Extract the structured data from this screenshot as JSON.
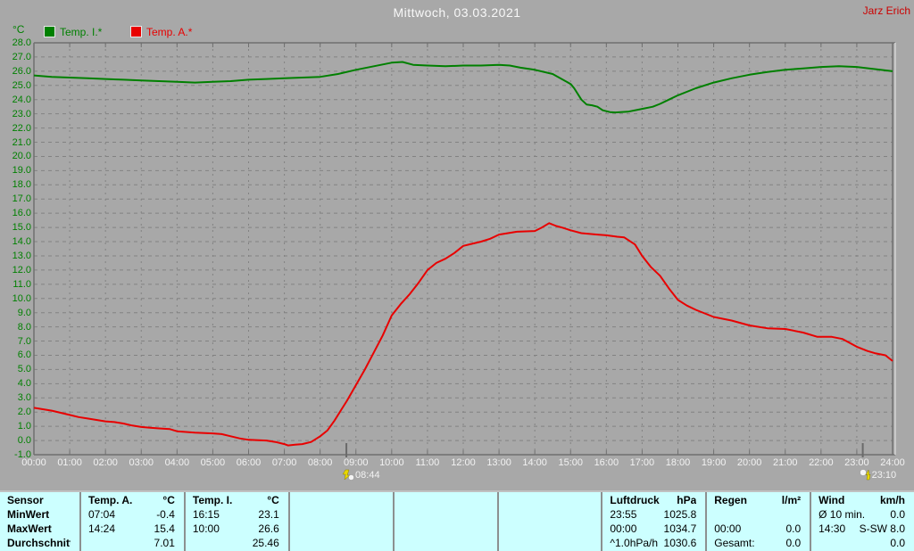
{
  "window": {
    "title": "Mittwoch, 03.03.2021",
    "author": "Jarz Erich"
  },
  "markers": [
    {
      "label": "08:44",
      "hours": 8.7333,
      "icon": "moon-set-icon"
    },
    {
      "label": "23:10",
      "hours": 23.1667,
      "icon": "moon-rise-icon"
    }
  ],
  "chart_data": {
    "type": "line",
    "title": "Mittwoch, 03.03.2021",
    "xlabel": "",
    "ylabel": "°C",
    "ylim": [
      -1.0,
      28.0
    ],
    "y_step": 1.0,
    "xlim_hours": [
      0,
      24
    ],
    "grid": "dashed",
    "legend_position": "top-left",
    "y_tick_labels": [
      "28.0",
      "27.0",
      "26.0",
      "25.0",
      "24.0",
      "23.0",
      "22.0",
      "21.0",
      "20.0",
      "19.0",
      "18.0",
      "17.0",
      "16.0",
      "15.0",
      "14.0",
      "13.0",
      "12.0",
      "11.0",
      "10.0",
      "9.0",
      "8.0",
      "7.0",
      "6.0",
      "5.0",
      "4.0",
      "3.0",
      "2.0",
      "1.0",
      "0.0",
      "-1.0"
    ],
    "x_tick_labels": [
      "00:00",
      "01:00",
      "02:00",
      "03:00",
      "04:00",
      "05:00",
      "06:00",
      "07:00",
      "08:00",
      "09:00",
      "10:00",
      "11:00",
      "12:00",
      "13:00",
      "14:00",
      "15:00",
      "16:00",
      "17:00",
      "18:00",
      "19:00",
      "20:00",
      "21:00",
      "22:00",
      "23:00",
      "24:00"
    ],
    "series": [
      {
        "name": "Temp. I.*",
        "color": "#008000",
        "points": [
          [
            0,
            25.7
          ],
          [
            0.5,
            25.6
          ],
          [
            1,
            25.55
          ],
          [
            1.5,
            25.5
          ],
          [
            2,
            25.45
          ],
          [
            2.5,
            25.4
          ],
          [
            3,
            25.35
          ],
          [
            3.5,
            25.3
          ],
          [
            4,
            25.25
          ],
          [
            4.5,
            25.2
          ],
          [
            5,
            25.25
          ],
          [
            5.5,
            25.3
          ],
          [
            6,
            25.4
          ],
          [
            6.5,
            25.45
          ],
          [
            7,
            25.5
          ],
          [
            7.5,
            25.55
          ],
          [
            8,
            25.6
          ],
          [
            8.5,
            25.8
          ],
          [
            9,
            26.1
          ],
          [
            9.5,
            26.35
          ],
          [
            10,
            26.6
          ],
          [
            10.3,
            26.65
          ],
          [
            10.6,
            26.45
          ],
          [
            11,
            26.4
          ],
          [
            11.5,
            26.35
          ],
          [
            12,
            26.4
          ],
          [
            12.5,
            26.4
          ],
          [
            13,
            26.45
          ],
          [
            13.3,
            26.4
          ],
          [
            13.6,
            26.25
          ],
          [
            14,
            26.1
          ],
          [
            14.5,
            25.8
          ],
          [
            15,
            25.1
          ],
          [
            15.1,
            24.8
          ],
          [
            15.3,
            24.0
          ],
          [
            15.45,
            23.65
          ],
          [
            15.6,
            23.6
          ],
          [
            15.75,
            23.5
          ],
          [
            15.9,
            23.25
          ],
          [
            16.1,
            23.12
          ],
          [
            16.25,
            23.1
          ],
          [
            16.6,
            23.15
          ],
          [
            17,
            23.35
          ],
          [
            17.3,
            23.5
          ],
          [
            17.5,
            23.7
          ],
          [
            17.75,
            24.0
          ],
          [
            18,
            24.3
          ],
          [
            18.5,
            24.8
          ],
          [
            19,
            25.2
          ],
          [
            19.5,
            25.5
          ],
          [
            20,
            25.75
          ],
          [
            20.5,
            25.95
          ],
          [
            21,
            26.1
          ],
          [
            21.5,
            26.2
          ],
          [
            22,
            26.3
          ],
          [
            22.5,
            26.35
          ],
          [
            23,
            26.3
          ],
          [
            23.5,
            26.15
          ],
          [
            24,
            26.0
          ]
        ]
      },
      {
        "name": "Temp. A.*",
        "color": "#E80000",
        "points": [
          [
            0,
            2.3
          ],
          [
            0.25,
            2.2
          ],
          [
            0.5,
            2.1
          ],
          [
            0.75,
            1.95
          ],
          [
            1,
            1.8
          ],
          [
            1.25,
            1.65
          ],
          [
            1.5,
            1.55
          ],
          [
            1.75,
            1.45
          ],
          [
            2,
            1.35
          ],
          [
            2.25,
            1.3
          ],
          [
            2.5,
            1.2
          ],
          [
            2.75,
            1.05
          ],
          [
            3,
            0.95
          ],
          [
            3.25,
            0.9
          ],
          [
            3.5,
            0.85
          ],
          [
            3.8,
            0.8
          ],
          [
            4,
            0.65
          ],
          [
            4.25,
            0.6
          ],
          [
            4.5,
            0.55
          ],
          [
            5,
            0.5
          ],
          [
            5.25,
            0.45
          ],
          [
            5.5,
            0.3
          ],
          [
            5.75,
            0.15
          ],
          [
            6,
            0.05
          ],
          [
            6.5,
            0.0
          ],
          [
            6.75,
            -0.1
          ],
          [
            7,
            -0.25
          ],
          [
            7.1,
            -0.35
          ],
          [
            7.3,
            -0.3
          ],
          [
            7.5,
            -0.25
          ],
          [
            7.75,
            -0.1
          ],
          [
            8,
            0.3
          ],
          [
            8.2,
            0.7
          ],
          [
            8.4,
            1.4
          ],
          [
            8.6,
            2.2
          ],
          [
            8.75,
            2.8
          ],
          [
            9,
            3.9
          ],
          [
            9.25,
            5.0
          ],
          [
            9.5,
            6.2
          ],
          [
            9.75,
            7.4
          ],
          [
            10,
            8.8
          ],
          [
            10.25,
            9.6
          ],
          [
            10.5,
            10.3
          ],
          [
            10.75,
            11.1
          ],
          [
            11,
            12.0
          ],
          [
            11.25,
            12.5
          ],
          [
            11.5,
            12.8
          ],
          [
            11.75,
            13.2
          ],
          [
            12,
            13.7
          ],
          [
            12.25,
            13.85
          ],
          [
            12.5,
            14.0
          ],
          [
            12.75,
            14.2
          ],
          [
            13,
            14.5
          ],
          [
            13.25,
            14.6
          ],
          [
            13.5,
            14.7
          ],
          [
            14,
            14.75
          ],
          [
            14.2,
            15.0
          ],
          [
            14.4,
            15.3
          ],
          [
            14.6,
            15.1
          ],
          [
            14.75,
            15.0
          ],
          [
            15,
            14.8
          ],
          [
            15.3,
            14.6
          ],
          [
            15.75,
            14.5
          ],
          [
            16,
            14.45
          ],
          [
            16.3,
            14.35
          ],
          [
            16.5,
            14.3
          ],
          [
            16.8,
            13.8
          ],
          [
            17,
            13.0
          ],
          [
            17.25,
            12.2
          ],
          [
            17.5,
            11.6
          ],
          [
            17.75,
            10.7
          ],
          [
            18,
            9.9
          ],
          [
            18.25,
            9.5
          ],
          [
            18.5,
            9.2
          ],
          [
            19,
            8.7
          ],
          [
            19.5,
            8.45
          ],
          [
            20,
            8.1
          ],
          [
            20.5,
            7.9
          ],
          [
            21,
            7.85
          ],
          [
            21.5,
            7.6
          ],
          [
            21.9,
            7.3
          ],
          [
            22.3,
            7.3
          ],
          [
            22.6,
            7.15
          ],
          [
            23,
            6.6
          ],
          [
            23.3,
            6.3
          ],
          [
            23.5,
            6.15
          ],
          [
            23.8,
            6.0
          ],
          [
            24,
            5.6
          ]
        ]
      }
    ]
  },
  "summary_table": {
    "row_labels": [
      "Sensor",
      "MinWert",
      "MaxWert",
      "Durchschnitt"
    ],
    "columns": [
      {
        "name": "Temp. A.",
        "unit": "°C",
        "min_time": "07:04",
        "min_value": "-0.4",
        "max_time": "14:24",
        "max_value": "15.4",
        "avg_label": "",
        "avg_value": "7.01"
      },
      {
        "name": "Temp. I.",
        "unit": "°C",
        "min_time": "16:15",
        "min_value": "23.1",
        "max_time": "10:00",
        "max_value": "26.6",
        "avg_label": "",
        "avg_value": "25.46"
      },
      {
        "name": "",
        "unit": "",
        "min_time": "",
        "min_value": "",
        "max_time": "",
        "max_value": "",
        "avg_label": "",
        "avg_value": ""
      },
      {
        "name": "",
        "unit": "",
        "min_time": "",
        "min_value": "",
        "max_time": "",
        "max_value": "",
        "avg_label": "",
        "avg_value": ""
      },
      {
        "name": "",
        "unit": "",
        "min_time": "",
        "min_value": "",
        "max_time": "",
        "max_value": "",
        "avg_label": "",
        "avg_value": ""
      },
      {
        "name": "Luftdruck",
        "unit": "hPa",
        "min_time": "23:55",
        "min_value": "1025.8",
        "max_time": "00:00",
        "max_value": "1034.7",
        "avg_label": "^1.0hPa/h",
        "avg_value": "1030.6"
      },
      {
        "name": "Regen",
        "unit": "l/m²",
        "min_time": "",
        "min_value": "",
        "max_time": "00:00",
        "max_value": "0.0",
        "avg_label": "Gesamt:",
        "avg_value": "0.0"
      },
      {
        "name": "Wind",
        "unit": "km/h",
        "min_time": "Ø 10 min.",
        "min_value": "0.0",
        "max_time": "14:30",
        "max_value": "S-SW 8.0",
        "avg_label": "",
        "avg_value": "0.0"
      }
    ]
  },
  "colors": {
    "background": "#A8A8A8",
    "grid": "#828282",
    "axis": "#6F6F6F",
    "y_labels": "#008000",
    "x_labels": "#F2F2F2",
    "table_background": "#CCFFFF",
    "author": "#CC0000"
  }
}
